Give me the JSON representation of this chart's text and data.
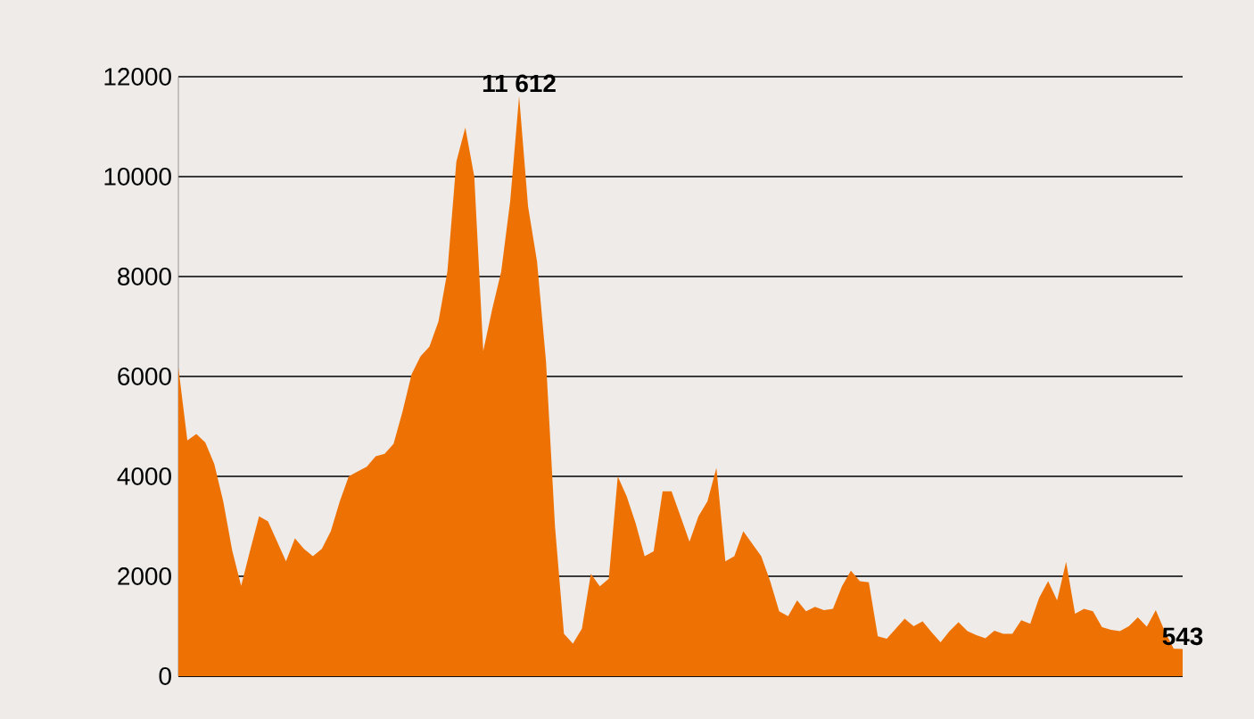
{
  "chart_data": {
    "type": "area",
    "categories": [
      null,
      null,
      null,
      null,
      null,
      null,
      null,
      null,
      null,
      null,
      null,
      null,
      null,
      null,
      null,
      null,
      null,
      null,
      null,
      null,
      null,
      null,
      null,
      null,
      null,
      null,
      null,
      null,
      null,
      null,
      null,
      null,
      null,
      null,
      null,
      null,
      null,
      null,
      null,
      null,
      null,
      null,
      null,
      null,
      null,
      null,
      null,
      null,
      null,
      null,
      null,
      null,
      null,
      null,
      null,
      null,
      null,
      null,
      null,
      null,
      null,
      null,
      null,
      null,
      null,
      null,
      null,
      null,
      null,
      null,
      null,
      null,
      null,
      null,
      null,
      null,
      null,
      null,
      null,
      null,
      null,
      null,
      null,
      null,
      null,
      null,
      null,
      null,
      null,
      null,
      null,
      null,
      null,
      null,
      null,
      null,
      null,
      null,
      null,
      null,
      null,
      null,
      null,
      null,
      null,
      null,
      null,
      null,
      null,
      null,
      null,
      null,
      null
    ],
    "values": [
      6180,
      4720,
      4850,
      4680,
      4250,
      3500,
      2520,
      1810,
      2520,
      3200,
      3100,
      2700,
      2300,
      2760,
      2550,
      2400,
      2550,
      2900,
      3500,
      4000,
      4100,
      4190,
      4400,
      4450,
      4650,
      5300,
      6040,
      6400,
      6600,
      7100,
      8100,
      10300,
      10980,
      10000,
      6510,
      7350,
      8100,
      9500,
      11612,
      9400,
      8300,
      6300,
      3000,
      850,
      650,
      950,
      2050,
      1800,
      1950,
      4000,
      3600,
      3060,
      2400,
      2500,
      3700,
      3700,
      3200,
      2690,
      3200,
      3500,
      4170,
      2300,
      2400,
      2900,
      2650,
      2400,
      1900,
      1300,
      1200,
      1520,
      1300,
      1390,
      1320,
      1350,
      1800,
      2110,
      1900,
      1880,
      800,
      750,
      950,
      1150,
      1000,
      1100,
      880,
      680,
      900,
      1080,
      900,
      820,
      760,
      910,
      850,
      850,
      1120,
      1050,
      1570,
      1900,
      1520,
      2290,
      1250,
      1350,
      1300,
      980,
      930,
      900,
      1000,
      1180,
      990,
      1320,
      900,
      550,
      543
    ],
    "color": "#ee7203",
    "ylim": [
      0,
      12000
    ],
    "yticks": [
      0,
      2000,
      4000,
      6000,
      8000,
      10000,
      12000
    ],
    "grid": "y",
    "annotations": [
      {
        "text": "11 612",
        "y": 11612
      },
      {
        "text": "543",
        "y": 543
      }
    ]
  }
}
